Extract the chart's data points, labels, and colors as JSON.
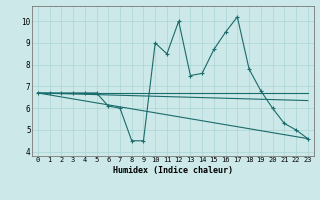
{
  "xlabel": "Humidex (Indice chaleur)",
  "background_color": "#cce8e8",
  "line_color": "#1a6b6b",
  "xlim": [
    -0.5,
    23.5
  ],
  "ylim": [
    3.8,
    10.7
  ],
  "yticks": [
    4,
    5,
    6,
    7,
    8,
    9,
    10
  ],
  "xticks": [
    0,
    1,
    2,
    3,
    4,
    5,
    6,
    7,
    8,
    9,
    10,
    11,
    12,
    13,
    14,
    15,
    16,
    17,
    18,
    19,
    20,
    21,
    22,
    23
  ],
  "line1_x": [
    0,
    1,
    2,
    3,
    4,
    5,
    6,
    7,
    8,
    9,
    10,
    11,
    12,
    13,
    14,
    15,
    16,
    17,
    18,
    19,
    20,
    21,
    22,
    23
  ],
  "line1_y": [
    6.7,
    6.7,
    6.7,
    6.7,
    6.7,
    6.7,
    6.1,
    6.0,
    4.5,
    4.5,
    9.0,
    8.5,
    10.0,
    7.5,
    7.6,
    8.7,
    9.5,
    10.2,
    7.8,
    6.8,
    6.0,
    5.3,
    5.0,
    4.6
  ],
  "line2_x": [
    0,
    23
  ],
  "line2_y": [
    6.7,
    6.7
  ],
  "line3_x": [
    0,
    23
  ],
  "line3_y": [
    6.7,
    4.6
  ],
  "line4_x": [
    0,
    23
  ],
  "line4_y": [
    6.7,
    6.35
  ],
  "grid_color": "#aad4d4"
}
